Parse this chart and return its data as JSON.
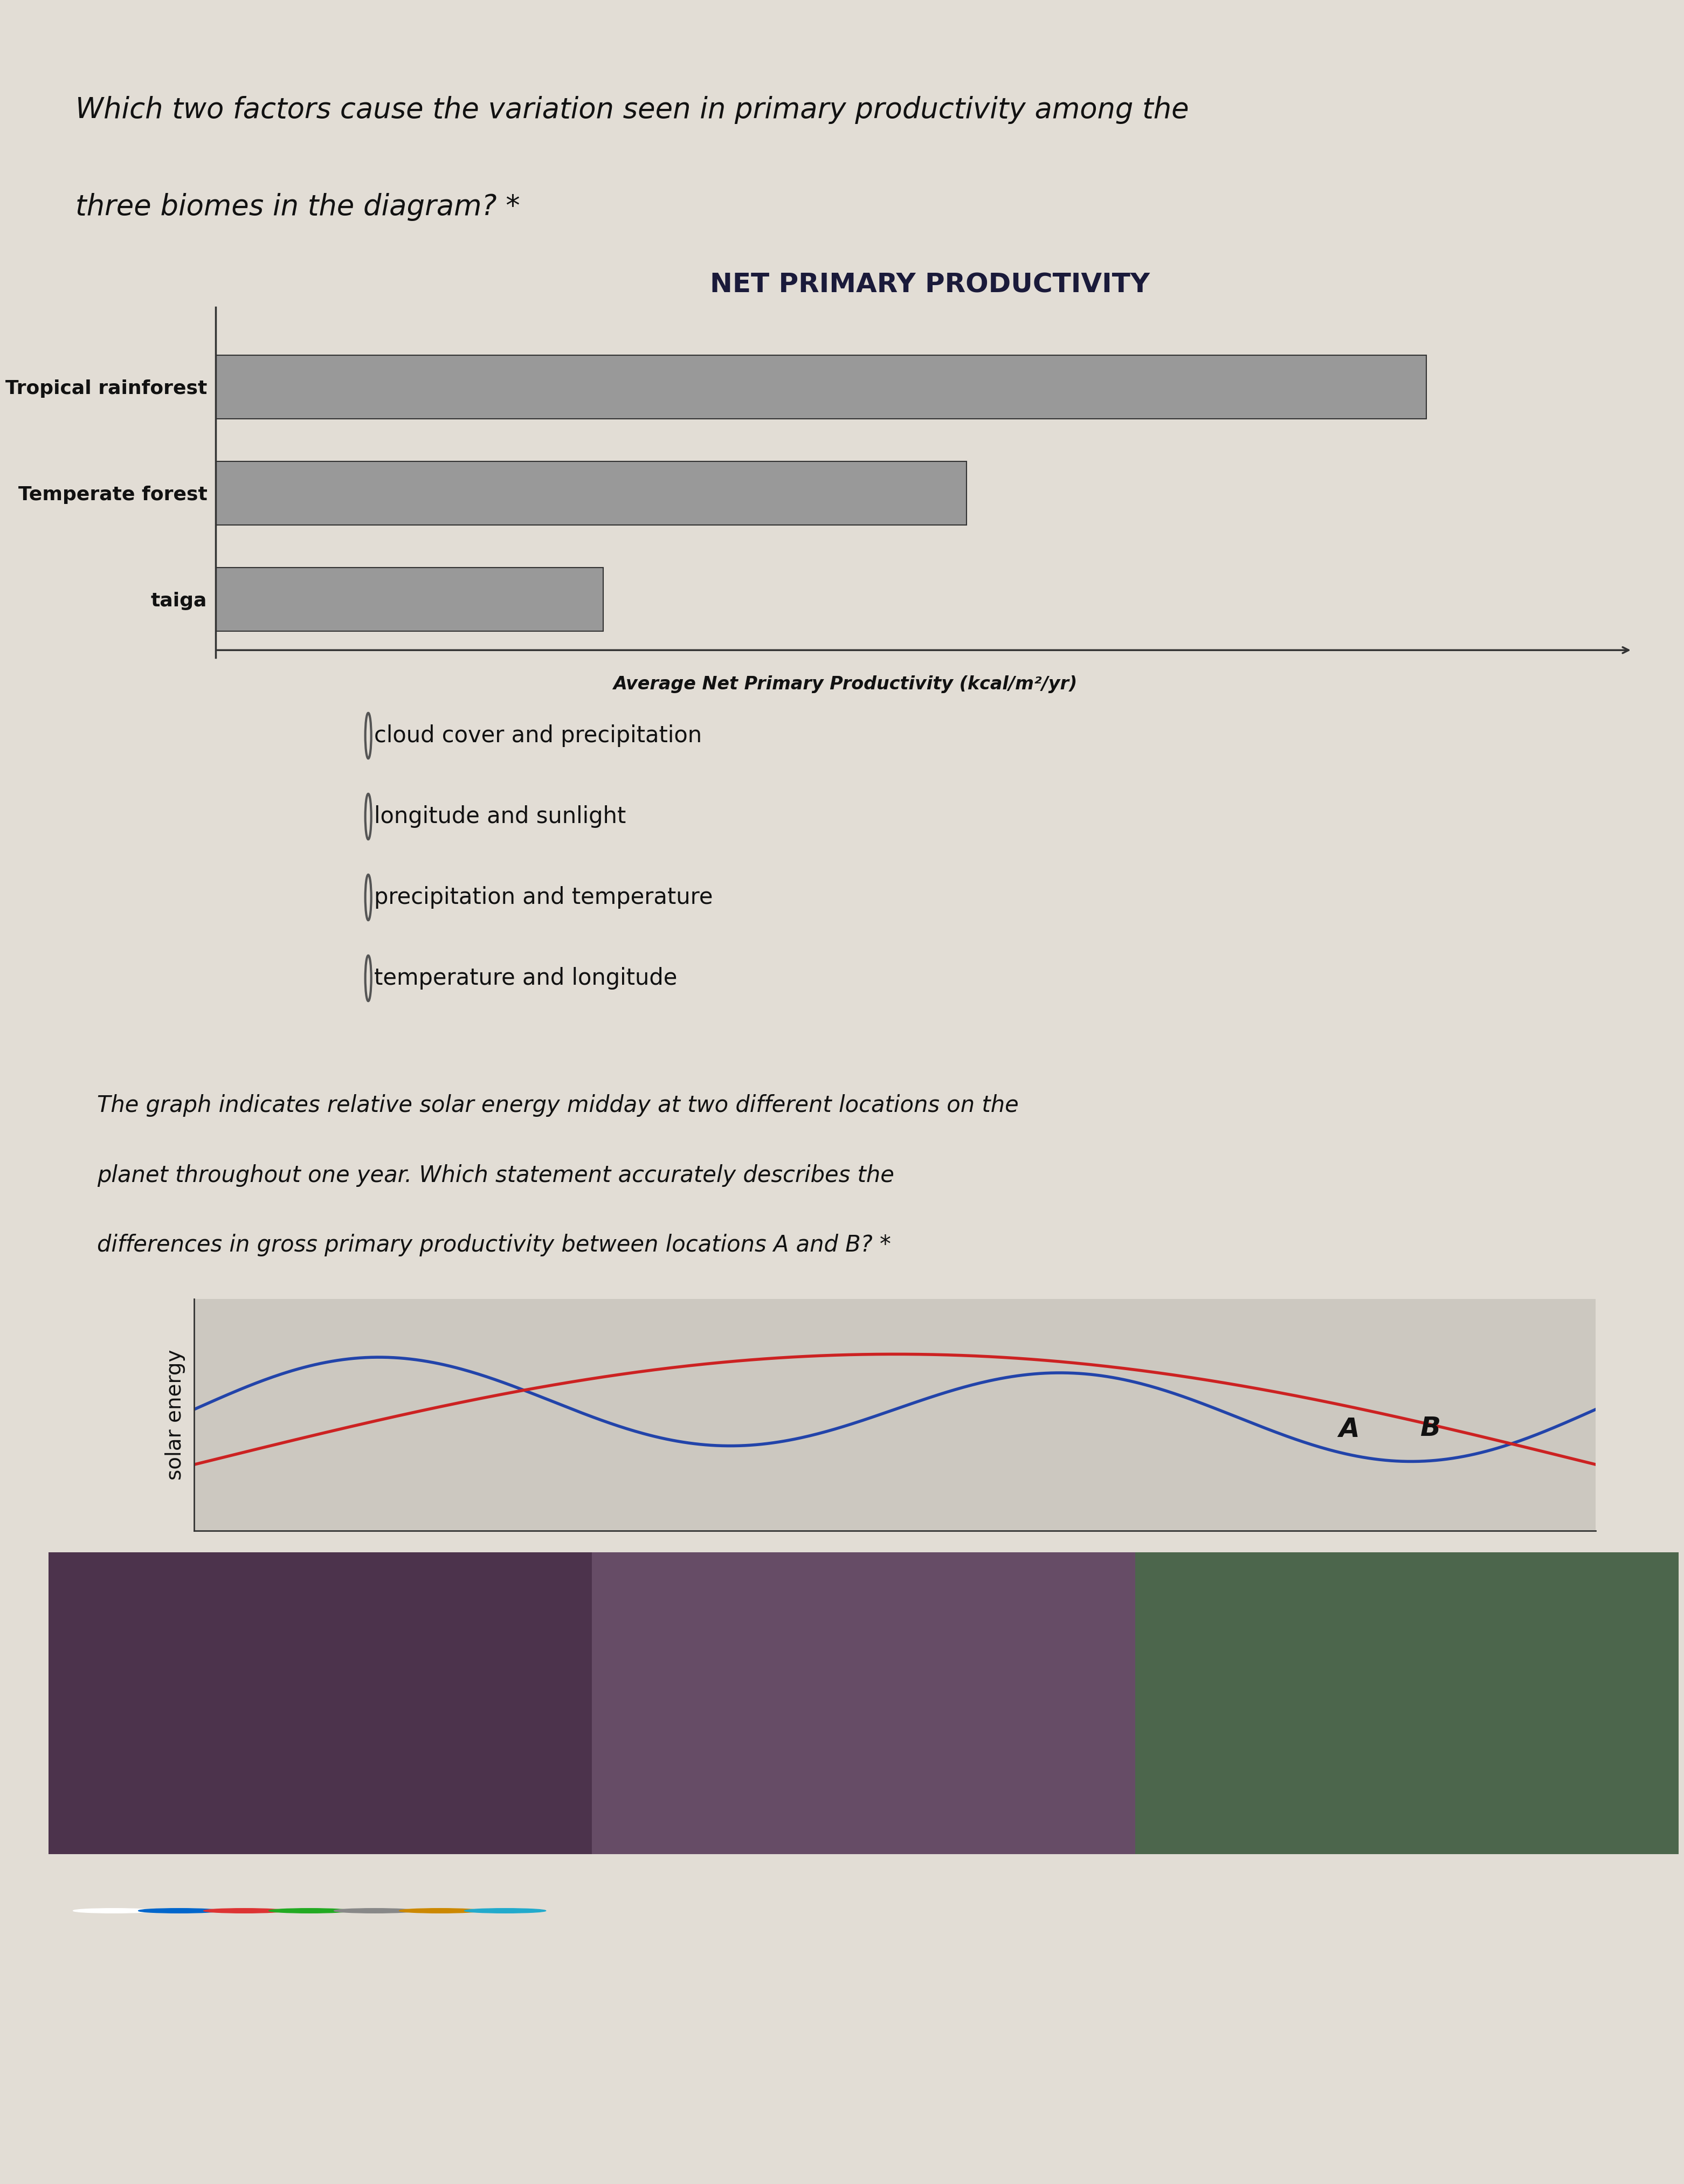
{
  "page_bg": "#e2ddd5",
  "header_color": "#a8a4a0",
  "question1_text_line1": "Which two factors cause the variation seen in primary productivity among the",
  "question1_text_line2": "three biomes in the diagram? *",
  "chart_title": "NET PRIMARY PRODUCTIVITY",
  "biomes": [
    "Tropical rainforest",
    "Temperate forest",
    "taiga"
  ],
  "bar_values": [
    1.0,
    0.62,
    0.32
  ],
  "bar_color": "#999999",
  "bar_edge_color": "#333333",
  "xlabel": "Average Net Primary Productivity (kcal/m²/yr)",
  "options1": [
    "cloud cover and precipitation",
    "longitude and sunlight",
    "precipitation and temperature",
    "temperature and longitude"
  ],
  "section2_bg": "#ccc8c0",
  "question2_text_line1": "The graph indicates relative solar energy midday at two different locations on the",
  "question2_text_line2": "planet throughout one year. Which statement accurately describes the",
  "question2_text_line3": "differences in gross primary productivity between locations A and B? *",
  "color_A": "#2244aa",
  "color_B": "#cc2222",
  "ylabel_solar": "solar energy",
  "label_A": "A",
  "label_B": "B",
  "taskbar_color": "#1a1a1a",
  "desktop_bg": "#2a2a2a"
}
